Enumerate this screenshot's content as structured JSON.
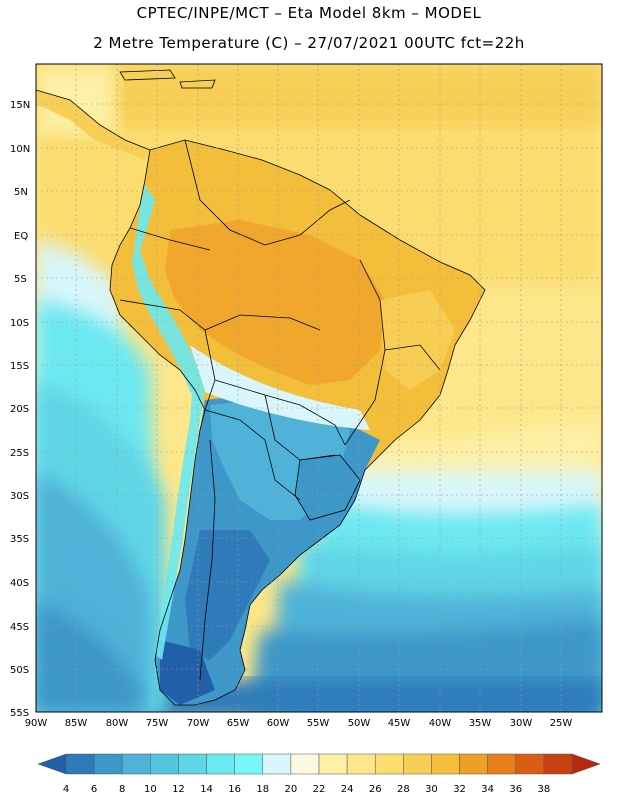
{
  "header": {
    "line1": "CPTEC/INPE/MCT –  Eta Model 8km – MODEL",
    "line2": "2 Metre Temperature (C) – 27/07/2021 00UTC fct=22h"
  },
  "map": {
    "lat_labels": [
      "15N",
      "10N",
      "5N",
      "EQ",
      "5S",
      "10S",
      "15S",
      "20S",
      "25S",
      "30S",
      "35S",
      "40S",
      "45S",
      "50S",
      "55S"
    ],
    "lon_labels": [
      "90W",
      "85W",
      "80W",
      "75W",
      "70W",
      "65W",
      "60W",
      "55W",
      "50W",
      "45W",
      "40W",
      "35W",
      "30W",
      "25W"
    ]
  },
  "legend": {
    "ticks": [
      "4",
      "6",
      "8",
      "10",
      "12",
      "14",
      "16",
      "18",
      "20",
      "22",
      "24",
      "26",
      "28",
      "30",
      "32",
      "34",
      "36",
      "38"
    ],
    "colors": [
      "#2160a8",
      "#2f7bba",
      "#3d97c9",
      "#4fb2d8",
      "#55c6e0",
      "#5fd6e6",
      "#6ce8f0",
      "#78f6f8",
      "#d8f6fb",
      "#fdf8e2",
      "#fdf1a6",
      "#fde78a",
      "#fbdc6e",
      "#f7cf56",
      "#f3bf3a",
      "#ee9f24",
      "#e67e1c",
      "#d95e14",
      "#c94010",
      "#b52a0e"
    ]
  }
}
